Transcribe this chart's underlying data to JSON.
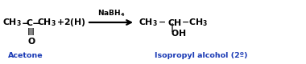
{
  "bg_color": "#ffffff",
  "text_color": "#000000",
  "blue_color": "#1a3ab5",
  "figsize": [
    3.8,
    0.8
  ],
  "dpi": 100,
  "acetone_label": "Acetone",
  "product_label": "Isopropyl alcohol (2º)"
}
